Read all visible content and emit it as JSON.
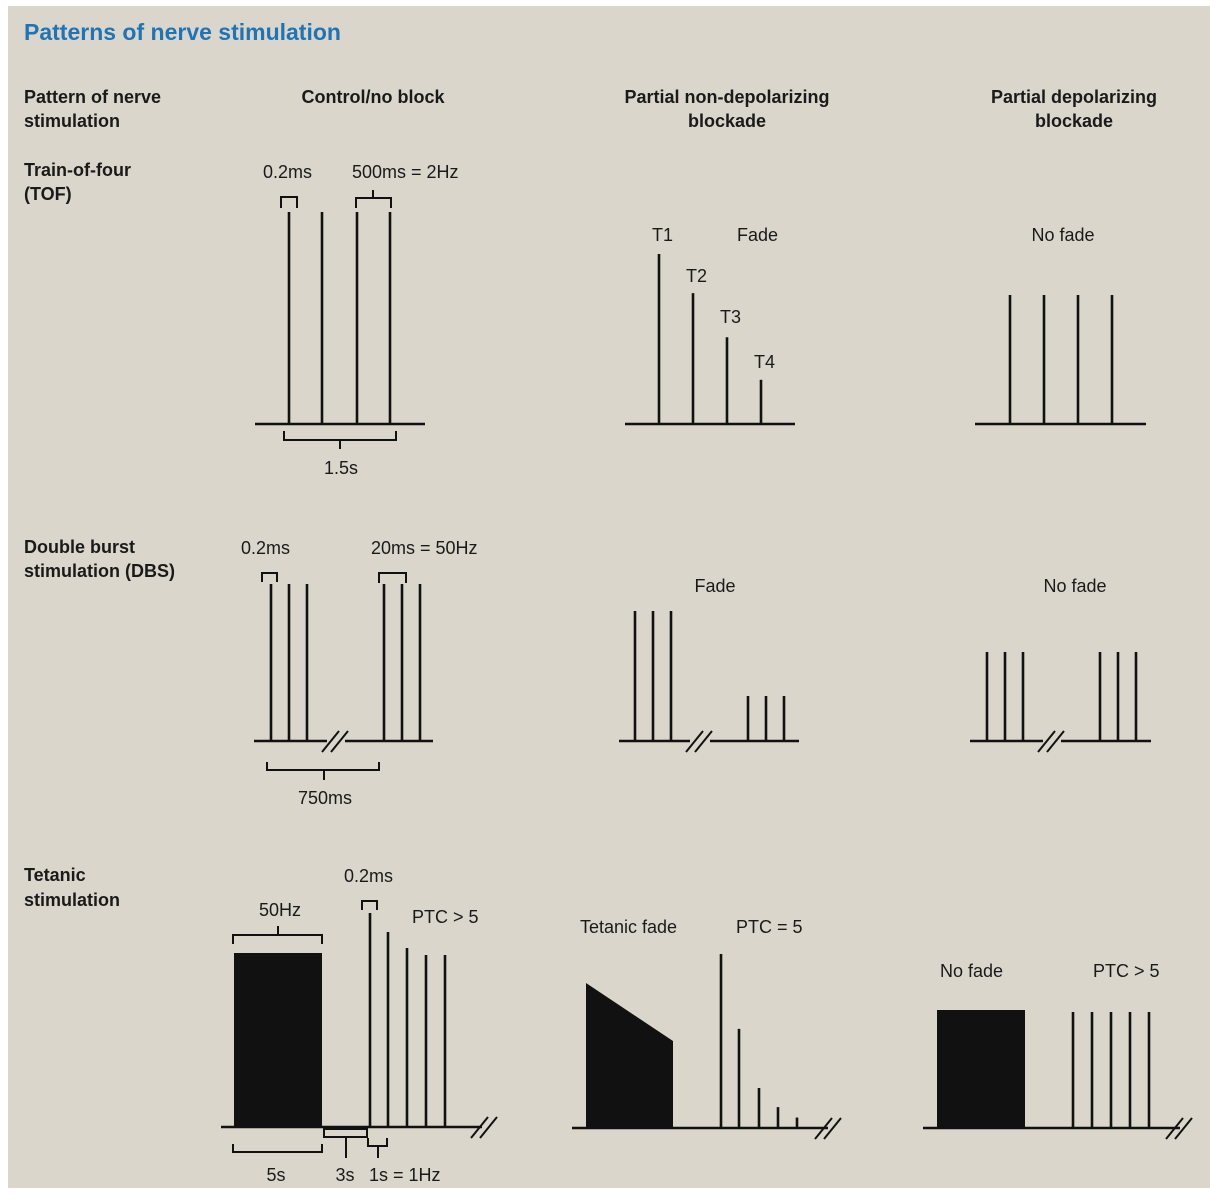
{
  "title": "Patterns of nerve stimulation",
  "headers": {
    "pattern": [
      "Pattern of nerve",
      "stimulation"
    ],
    "control": [
      "Control/no block"
    ],
    "nondep": [
      "Partial non-depolarizing",
      "blockade"
    ],
    "dep": [
      "Partial depolarizing",
      "blockade"
    ]
  },
  "rows": {
    "tof": {
      "label": [
        "Train-of-four",
        "(TOF)"
      ],
      "control": {
        "pulse_width": "0.2ms",
        "interval": "500ms  =  2Hz",
        "duration": "1.5s"
      },
      "nondep": {
        "t1": "T1",
        "t2": "T2",
        "t3": "T3",
        "t4": "T4",
        "fade": "Fade",
        "heights": [
          1.0,
          0.77,
          0.51,
          0.26
        ]
      },
      "dep": {
        "fade": "No  fade"
      }
    },
    "dbs": {
      "label": [
        "Double burst",
        "stimulation (DBS)"
      ],
      "control": {
        "pulse_width": "0.2ms",
        "interval": "20ms  =  50Hz",
        "duration": "750ms"
      },
      "nondep": {
        "fade": "Fade"
      },
      "dep": {
        "fade": "No  fade"
      }
    },
    "tet": {
      "label": [
        "Tetanic",
        "stimulation"
      ],
      "control": {
        "freq": "50Hz",
        "pulse_width": "0.2ms",
        "ptc": "PTC  >  5",
        "tet_duration": "5s",
        "pause": "3s",
        "single": "1s  =  1Hz"
      },
      "nondep": {
        "fade": "Tetanic  fade",
        "ptc": "PTC  =  5",
        "heights": [
          1.0,
          0.57,
          0.23,
          0.12,
          0.06
        ]
      },
      "dep": {
        "fade": "No  fade",
        "ptc": "PTC > 5"
      }
    }
  }
}
